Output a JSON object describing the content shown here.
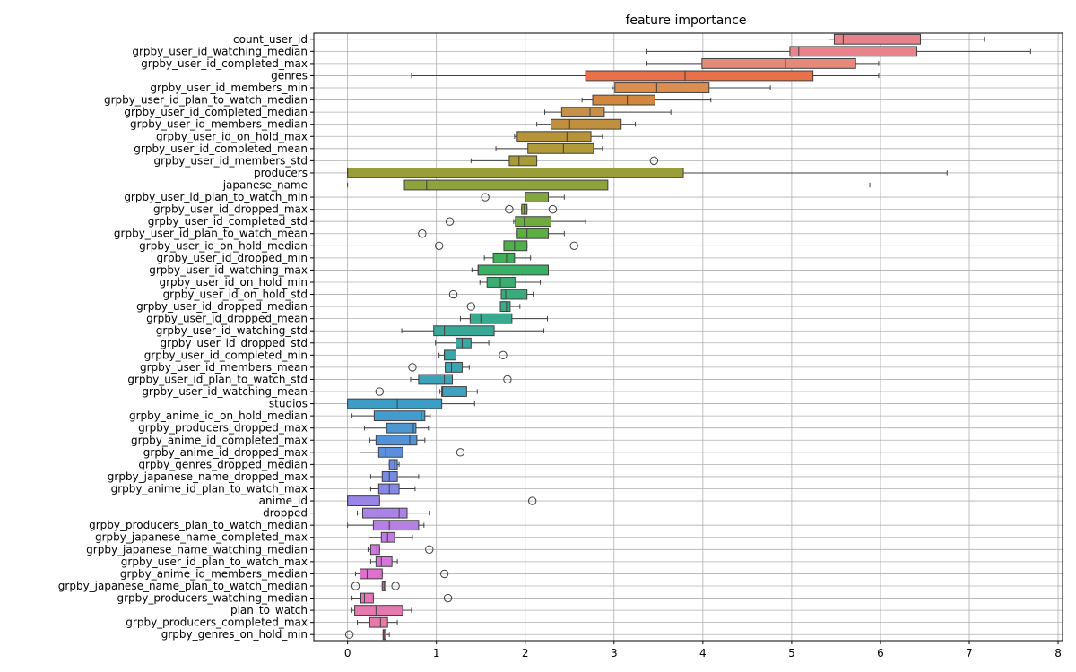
{
  "chart_data": {
    "type": "box",
    "title": "feature importance",
    "xlabel": "",
    "ylabel": "",
    "xlim": [
      -0.38,
      8.05
    ],
    "x_ticks": [
      0,
      1,
      2,
      3,
      4,
      5,
      6,
      7,
      8
    ],
    "grid": true,
    "legend": "none",
    "features": [
      {
        "name": "count_user_id",
        "color": "#e8838e",
        "min": 5.42,
        "q1": 5.48,
        "median": 5.58,
        "q3": 6.45,
        "max": 7.17,
        "fliers": []
      },
      {
        "name": "grpby_user_id_watching_median",
        "color": "#e8838b",
        "min": 3.37,
        "q1": 4.98,
        "median": 5.08,
        "q3": 6.41,
        "max": 7.69,
        "fliers": []
      },
      {
        "name": "grpby_user_id_completed_max",
        "color": "#e58a7a",
        "min": 3.37,
        "q1": 3.99,
        "median": 4.93,
        "q3": 5.72,
        "max": 5.98,
        "fliers": []
      },
      {
        "name": "genres",
        "color": "#e8714a",
        "min": 0.72,
        "q1": 2.68,
        "median": 3.8,
        "q3": 5.24,
        "max": 5.98,
        "fliers": []
      },
      {
        "name": "grpby_user_id_members_min",
        "color": "#dd8e4e",
        "min": 2.98,
        "q1": 3.01,
        "median": 3.48,
        "q3": 4.07,
        "max": 4.76,
        "fliers": []
      },
      {
        "name": "grpby_user_id_plan_to_watch_median",
        "color": "#d1873e",
        "min": 2.64,
        "q1": 2.76,
        "median": 3.15,
        "q3": 3.46,
        "max": 4.09,
        "fliers": []
      },
      {
        "name": "grpby_user_id_completed_median",
        "color": "#c7904a",
        "min": 2.22,
        "q1": 2.41,
        "median": 2.73,
        "q3": 2.89,
        "max": 3.64,
        "fliers": []
      },
      {
        "name": "grpby_user_id_members_median",
        "color": "#c1903e",
        "min": 2.13,
        "q1": 2.29,
        "median": 2.5,
        "q3": 3.08,
        "max": 3.24,
        "fliers": []
      },
      {
        "name": "grpby_user_id_on_hold_max",
        "color": "#b79438",
        "min": 1.88,
        "q1": 1.91,
        "median": 2.47,
        "q3": 2.74,
        "max": 2.87,
        "fliers": []
      },
      {
        "name": "grpby_user_id_completed_mean",
        "color": "#b09a3a",
        "min": 1.67,
        "q1": 2.03,
        "median": 2.43,
        "q3": 2.77,
        "max": 2.87,
        "fliers": []
      },
      {
        "name": "grpby_user_id_members_std",
        "color": "#a79b38",
        "min": 1.39,
        "q1": 1.82,
        "median": 1.93,
        "q3": 2.13,
        "max": 2.13,
        "fliers": [
          3.45
        ]
      },
      {
        "name": "producers",
        "color": "#9a9d38",
        "min": 0.0,
        "q1": 0.0,
        "median": 0.0,
        "q3": 3.78,
        "max": 6.75,
        "fliers": []
      },
      {
        "name": "japanese_name",
        "color": "#8fa23c",
        "min": 0.0,
        "q1": 0.64,
        "median": 0.89,
        "q3": 2.93,
        "max": 5.88,
        "fliers": []
      },
      {
        "name": "grpby_user_id_plan_to_watch_min",
        "color": "#84a63e",
        "min": 2.0,
        "q1": 2.0,
        "median": 2.0,
        "q3": 2.26,
        "max": 2.44,
        "fliers": [
          1.55
        ]
      },
      {
        "name": "grpby_user_id_dropped_max",
        "color": "#7aa93c",
        "min": 1.96,
        "q1": 1.96,
        "median": 1.99,
        "q3": 2.02,
        "max": 2.02,
        "fliers": [
          1.82,
          2.31
        ]
      },
      {
        "name": "grpby_user_id_completed_std",
        "color": "#6eab40",
        "min": 1.87,
        "q1": 1.89,
        "median": 1.99,
        "q3": 2.29,
        "max": 2.68,
        "fliers": [
          1.15
        ]
      },
      {
        "name": "grpby_user_id_plan_to_watch_mean",
        "color": "#5dae42",
        "min": 1.91,
        "q1": 1.91,
        "median": 2.02,
        "q3": 2.26,
        "max": 2.44,
        "fliers": [
          0.84
        ]
      },
      {
        "name": "grpby_user_id_on_hold_median",
        "color": "#4eb04a",
        "min": 1.76,
        "q1": 1.76,
        "median": 1.88,
        "q3": 2.02,
        "max": 2.02,
        "fliers": [
          1.03,
          2.55
        ]
      },
      {
        "name": "grpby_user_id_dropped_min",
        "color": "#3fb057",
        "min": 1.54,
        "q1": 1.64,
        "median": 1.79,
        "q3": 1.88,
        "max": 2.06,
        "fliers": []
      },
      {
        "name": "grpby_user_id_watching_max",
        "color": "#3aaf66",
        "min": 1.4,
        "q1": 1.47,
        "median": 1.47,
        "q3": 2.26,
        "max": 2.26,
        "fliers": []
      },
      {
        "name": "grpby_user_id_on_hold_min",
        "color": "#3aae72",
        "min": 1.49,
        "q1": 1.57,
        "median": 1.72,
        "q3": 1.89,
        "max": 2.17,
        "fliers": []
      },
      {
        "name": "grpby_user_id_on_hold_std",
        "color": "#3aac7c",
        "min": 1.73,
        "q1": 1.73,
        "median": 1.78,
        "q3": 2.02,
        "max": 2.09,
        "fliers": [
          1.19
        ]
      },
      {
        "name": "grpby_user_id_dropped_median",
        "color": "#3aab86",
        "min": 1.72,
        "q1": 1.72,
        "median": 1.79,
        "q3": 1.83,
        "max": 1.94,
        "fliers": [
          1.39
        ]
      },
      {
        "name": "grpby_user_id_dropped_mean",
        "color": "#3aaa8f",
        "min": 1.27,
        "q1": 1.38,
        "median": 1.5,
        "q3": 1.85,
        "max": 2.25,
        "fliers": []
      },
      {
        "name": "grpby_user_id_watching_std",
        "color": "#3aa898",
        "min": 0.61,
        "q1": 0.97,
        "median": 1.09,
        "q3": 1.65,
        "max": 2.21,
        "fliers": []
      },
      {
        "name": "grpby_user_id_dropped_std",
        "color": "#3aa7a0",
        "min": 0.99,
        "q1": 1.22,
        "median": 1.29,
        "q3": 1.39,
        "max": 1.59,
        "fliers": []
      },
      {
        "name": "grpby_user_id_completed_min",
        "color": "#3ba6a8",
        "min": 1.03,
        "q1": 1.09,
        "median": 1.09,
        "q3": 1.22,
        "max": 1.22,
        "fliers": [
          1.75
        ]
      },
      {
        "name": "grpby_user_id_members_mean",
        "color": "#3ca4b0",
        "min": 1.1,
        "q1": 1.1,
        "median": 1.17,
        "q3": 1.29,
        "max": 1.37,
        "fliers": [
          0.73
        ]
      },
      {
        "name": "grpby_user_id_plan_to_watch_std",
        "color": "#3ea3b8",
        "min": 0.71,
        "q1": 0.8,
        "median": 1.09,
        "q3": 1.18,
        "max": 1.18,
        "fliers": [
          1.8
        ]
      },
      {
        "name": "grpby_user_id_watching_mean",
        "color": "#40a1c0",
        "min": 1.04,
        "q1": 1.06,
        "median": 1.07,
        "q3": 1.34,
        "max": 1.46,
        "fliers": [
          0.36
        ]
      },
      {
        "name": "studios",
        "color": "#3c9ec7",
        "min": 0.0,
        "q1": 0.0,
        "median": 0.56,
        "q3": 1.06,
        "max": 1.43,
        "fliers": []
      },
      {
        "name": "grpby_anime_id_on_hold_median",
        "color": "#449bcd",
        "min": 0.05,
        "q1": 0.3,
        "median": 0.83,
        "q3": 0.87,
        "max": 0.93,
        "fliers": []
      },
      {
        "name": "grpby_producers_dropped_max",
        "color": "#4a97d4",
        "min": 0.19,
        "q1": 0.44,
        "median": 0.74,
        "q3": 0.77,
        "max": 0.91,
        "fliers": []
      },
      {
        "name": "grpby_anime_id_completed_max",
        "color": "#5093da",
        "min": 0.25,
        "q1": 0.32,
        "median": 0.7,
        "q3": 0.78,
        "max": 0.87,
        "fliers": []
      },
      {
        "name": "grpby_anime_id_dropped_max",
        "color": "#5a8fe0",
        "min": 0.14,
        "q1": 0.35,
        "median": 0.43,
        "q3": 0.62,
        "max": 0.62,
        "fliers": [
          1.27
        ]
      },
      {
        "name": "grpby_genres_dropped_median",
        "color": "#6a8ee3",
        "min": 0.47,
        "q1": 0.47,
        "median": 0.53,
        "q3": 0.56,
        "max": 0.58,
        "fliers": []
      },
      {
        "name": "grpby_japanese_name_dropped_max",
        "color": "#788be4",
        "min": 0.26,
        "q1": 0.39,
        "median": 0.47,
        "q3": 0.56,
        "max": 0.8,
        "fliers": []
      },
      {
        "name": "grpby_anime_id_plan_to_watch_max",
        "color": "#8788e6",
        "min": 0.26,
        "q1": 0.35,
        "median": 0.47,
        "q3": 0.58,
        "max": 0.76,
        "fliers": []
      },
      {
        "name": "anime_id",
        "color": "#9985e6",
        "min": 0.0,
        "q1": 0.0,
        "median": 0.0,
        "q3": 0.36,
        "max": 0.36,
        "fliers": [
          2.08
        ]
      },
      {
        "name": "dropped",
        "color": "#a983e6",
        "min": 0.11,
        "q1": 0.17,
        "median": 0.58,
        "q3": 0.67,
        "max": 0.92,
        "fliers": []
      },
      {
        "name": "grpby_producers_plan_to_watch_median",
        "color": "#b57fe4",
        "min": 0.0,
        "q1": 0.29,
        "median": 0.47,
        "q3": 0.8,
        "max": 0.86,
        "fliers": []
      },
      {
        "name": "grpby_japanese_name_completed_max",
        "color": "#c17ce2",
        "min": 0.24,
        "q1": 0.38,
        "median": 0.45,
        "q3": 0.53,
        "max": 0.73,
        "fliers": []
      },
      {
        "name": "grpby_japanese_name_watching_median",
        "color": "#cf77df",
        "min": 0.23,
        "q1": 0.26,
        "median": 0.33,
        "q3": 0.36,
        "max": 0.36,
        "fliers": [
          0.92
        ]
      },
      {
        "name": "grpby_user_id_plan_to_watch_max",
        "color": "#d875d8",
        "min": 0.26,
        "q1": 0.32,
        "median": 0.38,
        "q3": 0.5,
        "max": 0.56,
        "fliers": []
      },
      {
        "name": "grpby_anime_id_members_median",
        "color": "#e070ce",
        "min": 0.09,
        "q1": 0.14,
        "median": 0.22,
        "q3": 0.39,
        "max": 0.39,
        "fliers": [
          1.09
        ]
      },
      {
        "name": "grpby_japanese_name_plan_to_watch_median",
        "color": "#e472c4",
        "min": 0.39,
        "q1": 0.39,
        "median": 0.41,
        "q3": 0.43,
        "max": 0.43,
        "fliers": [
          0.09,
          0.54
        ]
      },
      {
        "name": "grpby_producers_watching_median",
        "color": "#e676b8",
        "min": 0.05,
        "q1": 0.15,
        "median": 0.19,
        "q3": 0.29,
        "max": 0.29,
        "fliers": [
          1.13
        ]
      },
      {
        "name": "plan_to_watch",
        "color": "#e678b0",
        "min": 0.05,
        "q1": 0.08,
        "median": 0.32,
        "q3": 0.62,
        "max": 0.72,
        "fliers": []
      },
      {
        "name": "grpby_producers_completed_max",
        "color": "#e77aa8",
        "min": 0.11,
        "q1": 0.25,
        "median": 0.37,
        "q3": 0.45,
        "max": 0.56,
        "fliers": []
      },
      {
        "name": "grpby_genres_on_hold_min",
        "color": "#e87da0",
        "min": 0.4,
        "q1": 0.4,
        "median": 0.41,
        "q3": 0.43,
        "max": 0.47,
        "fliers": [
          0.02
        ]
      }
    ]
  }
}
